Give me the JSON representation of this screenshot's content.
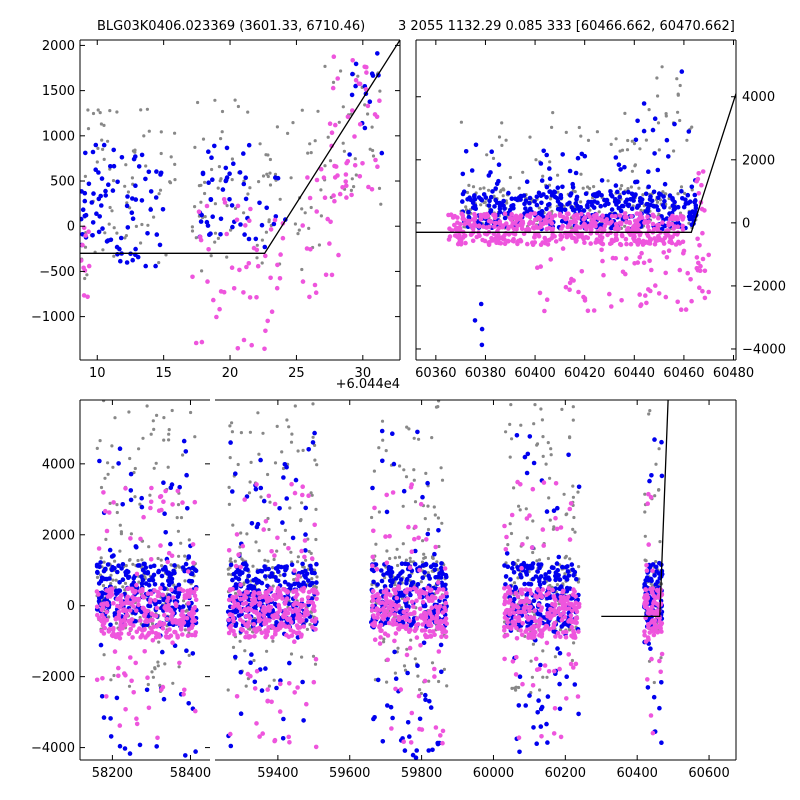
{
  "title_left": "BLG03K0406.023369 (3601.33, 6710.46)",
  "title_right": "3 2055 1132.29 0.085 333 [60466.662, 60470.662]",
  "colors": {
    "gray": "#888888",
    "blue": "#0000ee",
    "pink": "#ee55dd",
    "model": "#000000"
  },
  "chart_data": [
    {
      "type": "scatter",
      "panel": "top-left zoom",
      "xlim": [
        8.7,
        32.8
      ],
      "ylim": [
        -1480,
        2060
      ],
      "x_offset_label": "+6.044e4",
      "xticks": [
        10,
        15,
        20,
        25,
        30
      ],
      "yticks": [
        -1000,
        -500,
        0,
        500,
        1000,
        1500,
        2000
      ],
      "model_line": {
        "x": [
          8.7,
          22.6,
          32.8
        ],
        "y": [
          -300,
          -300,
          2060
        ]
      },
      "series": [
        {
          "color": "gray",
          "clusters": [
            {
              "x": [
                8.7,
                11.5
              ],
              "y": [
                -600,
                1300
              ],
              "n": 35
            },
            {
              "x": [
                12,
                16
              ],
              "y": [
                -450,
                1450
              ],
              "n": 35
            },
            {
              "x": [
                17,
                21.5
              ],
              "y": [
                -500,
                1400
              ],
              "n": 45
            },
            {
              "x": [
                22,
                27
              ],
              "y": [
                -500,
                1300
              ],
              "n": 45
            },
            {
              "x": [
                27,
                31.5
              ],
              "y": [
                200,
                1800
              ],
              "n": 35
            }
          ]
        },
        {
          "color": "blue",
          "clusters": [
            {
              "x": [
                8.7,
                11.5
              ],
              "y": [
                -300,
                900
              ],
              "n": 40
            },
            {
              "x": [
                11.5,
                15
              ],
              "y": [
                -450,
                850
              ],
              "n": 40
            },
            {
              "x": [
                17.5,
                21.5
              ],
              "y": [
                -200,
                900
              ],
              "n": 40
            },
            {
              "x": [
                21,
                25
              ],
              "y": [
                -300,
                600
              ],
              "n": 12
            },
            {
              "x": [
                29,
                31.5
              ],
              "y": [
                700,
                2000
              ],
              "n": 15
            }
          ]
        },
        {
          "color": "pink",
          "clusters": [
            {
              "x": [
                8.7,
                9.5
              ],
              "y": [
                -800,
                100
              ],
              "n": 10
            },
            {
              "x": [
                17,
                24
              ],
              "y": [
                -1400,
                300
              ],
              "n": 50
            },
            {
              "x": [
                25,
                28.5
              ],
              "y": [
                -800,
                700
              ],
              "n": 25
            },
            {
              "x": [
                27.5,
                31.5
              ],
              "y": [
                300,
                1900
              ],
              "n": 40
            }
          ]
        }
      ]
    },
    {
      "type": "scatter",
      "panel": "top-right",
      "xlim": [
        60352,
        60481
      ],
      "ylim": [
        -4350,
        5800
      ],
      "xticks": [
        60360,
        60380,
        60400,
        60420,
        60440,
        60460,
        60480
      ],
      "yticks": [
        -4000,
        -2000,
        0,
        2000,
        4000
      ],
      "y_axis_side": "right",
      "model_line": {
        "x": [
          60352,
          60463,
          60481
        ],
        "y": [
          -300,
          -300,
          4100
        ]
      },
      "series": [
        {
          "color": "gray",
          "clusters": [
            {
              "x": [
                60370,
                60465
              ],
              "y": [
                -200,
                1200
              ],
              "n": 250
            },
            {
              "x": [
                60370,
                60465
              ],
              "y": [
                1000,
                3500
              ],
              "n": 45
            },
            {
              "x": [
                60445,
                60465
              ],
              "y": [
                3000,
                5200
              ],
              "n": 12
            }
          ]
        },
        {
          "color": "blue",
          "clusters": [
            {
              "x": [
                60370,
                60465
              ],
              "y": [
                -200,
                1000
              ],
              "n": 380
            },
            {
              "x": [
                60370,
                60465
              ],
              "y": [
                1000,
                2500
              ],
              "n": 45
            },
            {
              "x": [
                60440,
                60465
              ],
              "y": [
                2500,
                5000
              ],
              "n": 10
            },
            {
              "x": [
                60375,
                60380
              ],
              "y": [
                -4000,
                -2500
              ],
              "n": 4
            }
          ]
        },
        {
          "color": "pink",
          "clusters": [
            {
              "x": [
                60365,
                60460
              ],
              "y": [
                -700,
                300
              ],
              "n": 480
            },
            {
              "x": [
                60400,
                60465
              ],
              "y": [
                -2800,
                -800
              ],
              "n": 60
            },
            {
              "x": [
                60465,
                60470
              ],
              "y": [
                -2500,
                1800
              ],
              "n": 25
            }
          ]
        }
      ]
    },
    {
      "type": "scatter",
      "panel": "bottom (two broken-x sub-axes)",
      "ylim": [
        -4350,
        5800
      ],
      "yticks": [
        -4000,
        -2000,
        0,
        2000,
        4000
      ],
      "sub_axes": [
        {
          "xlim": [
            58117,
            58450
          ],
          "xticks": [
            58200,
            58400
          ],
          "seasons": [
            [
              58160,
              58415
            ]
          ]
        },
        {
          "xlim": [
            59225,
            60675
          ],
          "xticks": [
            59400,
            59600,
            59800,
            60000,
            60200,
            60400,
            60600
          ],
          "seasons": [
            [
              59260,
              59510
            ],
            [
              59660,
              59870
            ],
            [
              60030,
              60240
            ],
            [
              60420,
              60470
            ]
          ]
        }
      ],
      "model_line": {
        "x": [
          60300,
          60463,
          60486
        ],
        "y": [
          -300,
          -300,
          5800
        ]
      },
      "series": [
        {
          "color": "gray",
          "per_season": {
            "core": [
              -700,
              1400
            ],
            "spread": [
              -2500,
              5800
            ]
          }
        },
        {
          "color": "blue",
          "per_season": {
            "core": [
              -600,
              1200
            ],
            "spread": [
              -4300,
              5000
            ]
          }
        },
        {
          "color": "pink",
          "per_season": {
            "core": [
              -900,
              500
            ],
            "spread": [
              -4000,
              3500
            ]
          }
        }
      ]
    }
  ]
}
